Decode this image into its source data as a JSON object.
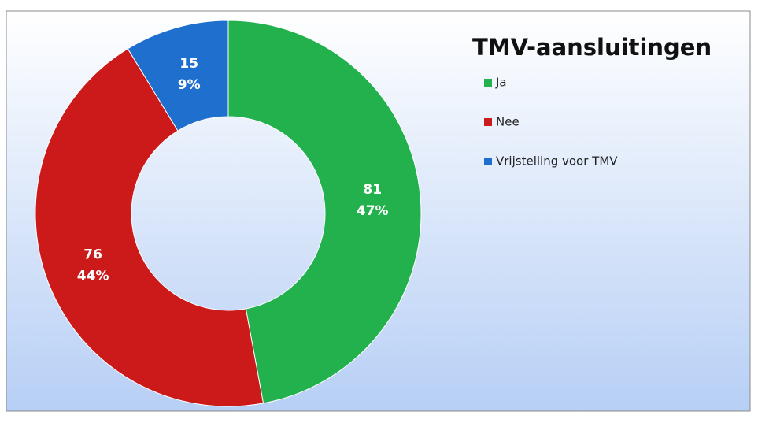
{
  "chart_data": {
    "type": "donut",
    "title": "TMV-aansluitingen",
    "categories": [
      "Ja",
      "Nee",
      "Vrijstelling voor TMV"
    ],
    "values": [
      81,
      76,
      15
    ],
    "percent_labels": [
      "47%",
      "44%",
      "9%"
    ],
    "colors": [
      "#22b14c",
      "#cc1a1a",
      "#1f6fcf"
    ],
    "legend": "right"
  }
}
